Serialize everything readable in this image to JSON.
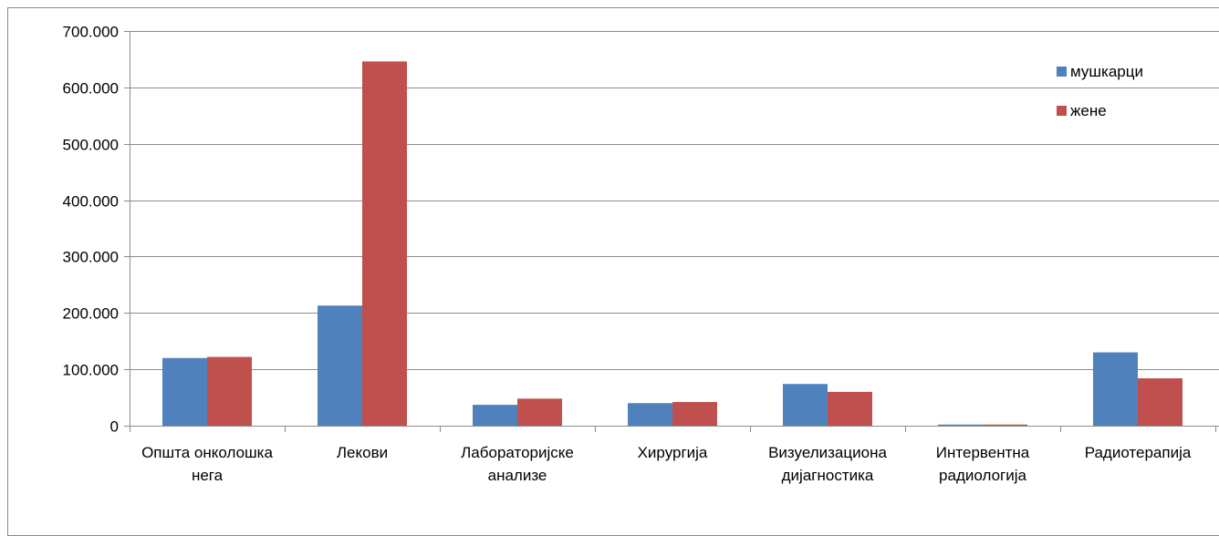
{
  "chart_data": {
    "type": "bar",
    "categories": [
      [
        "Општа онколошка",
        "нега"
      ],
      [
        "Лекови"
      ],
      [
        "Лабораторијске",
        "анализе"
      ],
      [
        "Хирургија"
      ],
      [
        "Визуелизациона",
        "дијагностика"
      ],
      [
        "Интервентна",
        "радиологија"
      ],
      [
        "Радиотерапија"
      ]
    ],
    "series": [
      {
        "name": "мушкарци",
        "color": "#4F81BD",
        "values": [
          120000,
          213000,
          37000,
          40000,
          74000,
          2000,
          130000
        ]
      },
      {
        "name": "жене",
        "color": "#C0504D",
        "values": [
          122000,
          646000,
          48000,
          42000,
          60000,
          2000,
          84000
        ]
      }
    ],
    "ylim": [
      0,
      700000
    ],
    "y_ticks": [
      {
        "value": 0,
        "label": "0"
      },
      {
        "value": 100000,
        "label": "100.000"
      },
      {
        "value": 200000,
        "label": "200.000"
      },
      {
        "value": 300000,
        "label": "300.000"
      },
      {
        "value": 400000,
        "label": "400.000"
      },
      {
        "value": 500000,
        "label": "500.000"
      },
      {
        "value": 600000,
        "label": "600.000"
      },
      {
        "value": 700000,
        "label": "700.000"
      }
    ],
    "grid": true,
    "legend_position": "top-right",
    "title": "",
    "xlabel": "",
    "ylabel": ""
  }
}
